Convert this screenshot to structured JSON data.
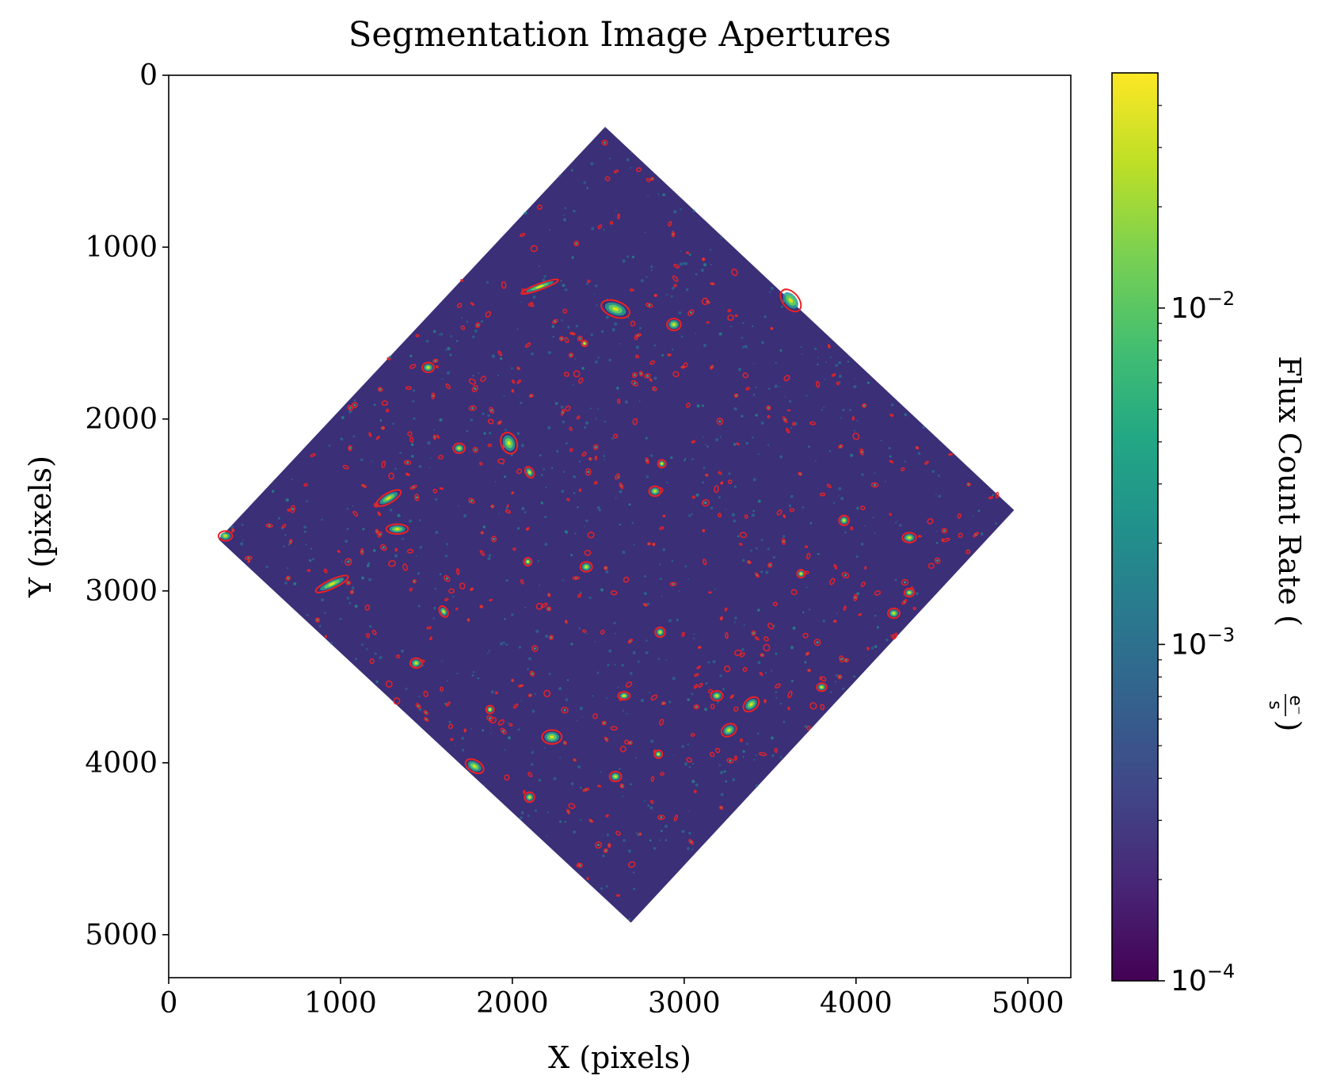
{
  "chart_data": {
    "type": "image",
    "title": "Segmentation Image Apertures",
    "xlabel": "X (pixels)",
    "ylabel": "Y (pixels)",
    "xlim": [
      0,
      5250
    ],
    "ylim": [
      5250,
      0
    ],
    "xticks": [
      0,
      1000,
      2000,
      3000,
      4000,
      5000
    ],
    "xtick_labels": [
      "0",
      "1000",
      "2000",
      "3000",
      "4000",
      "5000"
    ],
    "yticks": [
      0,
      1000,
      2000,
      3000,
      4000,
      5000
    ],
    "ytick_labels": [
      "0",
      "1000",
      "2000",
      "3000",
      "4000",
      "5000"
    ],
    "image_footprint": [
      [
        2540,
        300
      ],
      [
        4920,
        2530
      ],
      [
        2690,
        4930
      ],
      [
        290,
        2700
      ]
    ],
    "colormap": "viridis",
    "colorbar": {
      "label": "Flux Count Rate",
      "unit_numerator": "e⁻",
      "unit_denominator": "s",
      "scale": "log",
      "range": [
        0.0001,
        0.05
      ],
      "ticks": [
        0.0001,
        0.001,
        0.01
      ],
      "tick_base": "10",
      "tick_exponents": [
        "−4",
        "−3",
        "−2"
      ]
    },
    "aperture_color": "#ee2222",
    "bright_sources": [
      [
        2600,
        1360,
        75,
        40,
        20
      ],
      [
        2940,
        1450,
        35,
        30,
        0
      ],
      [
        3620,
        1310,
        65,
        40,
        50
      ],
      [
        2160,
        1230,
        100,
        15,
        -20
      ],
      [
        1510,
        1700,
        30,
        25,
        0
      ],
      [
        1980,
        2140,
        55,
        40,
        70
      ],
      [
        1280,
        2460,
        70,
        25,
        -30
      ],
      [
        1330,
        2640,
        55,
        25,
        0
      ],
      [
        950,
        2960,
        90,
        22,
        -25
      ],
      [
        2830,
        2420,
        30,
        25,
        0
      ],
      [
        2870,
        2260,
        20,
        20,
        0
      ],
      [
        2430,
        2860,
        30,
        25,
        0
      ],
      [
        4310,
        2690,
        35,
        25,
        0
      ],
      [
        4220,
        3130,
        30,
        25,
        0
      ],
      [
        3930,
        2590,
        25,
        25,
        0
      ],
      [
        2860,
        3240,
        25,
        25,
        0
      ],
      [
        2650,
        3610,
        30,
        20,
        0
      ],
      [
        3190,
        3610,
        30,
        25,
        0
      ],
      [
        3390,
        3660,
        45,
        30,
        -40
      ],
      [
        3260,
        3810,
        40,
        30,
        -30
      ],
      [
        2230,
        3850,
        50,
        35,
        0
      ],
      [
        1780,
        4020,
        50,
        30,
        30
      ],
      [
        2100,
        4200,
        25,
        25,
        0
      ],
      [
        2600,
        4080,
        30,
        25,
        0
      ],
      [
        2850,
        3950,
        20,
        20,
        0
      ],
      [
        1690,
        2170,
        30,
        25,
        0
      ],
      [
        2100,
        2310,
        30,
        20,
        60
      ],
      [
        1440,
        3420,
        30,
        25,
        0
      ],
      [
        330,
        2680,
        35,
        25,
        0
      ],
      [
        4310,
        3010,
        25,
        20,
        0
      ],
      [
        1600,
        3120,
        30,
        20,
        60
      ],
      [
        2090,
        2830,
        20,
        20,
        0
      ],
      [
        3680,
        2900,
        20,
        20,
        0
      ],
      [
        1870,
        3690,
        20,
        20,
        0
      ],
      [
        2420,
        1560,
        15,
        15,
        0
      ],
      [
        3800,
        3560,
        25,
        20,
        0
      ]
    ]
  }
}
